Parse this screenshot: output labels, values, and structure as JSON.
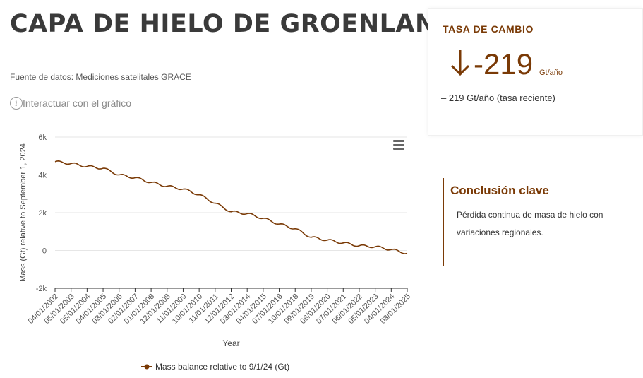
{
  "header": {
    "title": "CAPA DE HIELO DE GROENLANDIA",
    "source": "Fuente de datos: Mediciones satelitales GRACE",
    "interact_label": "Interactuar con el gráfico",
    "info_icon": "i"
  },
  "rate_card": {
    "label": "TASA DE CAMBIO",
    "arrow_icon": "arrow-down-icon",
    "value": "-219",
    "unit": "Gt/año",
    "note": "– 219 Gt/año (tasa reciente)"
  },
  "conclusion": {
    "title": "Conclusión clave",
    "text": "Pérdida continua de masa de hielo con variaciones regionales."
  },
  "colors": {
    "accent": "#7a3a06",
    "line": "#7a3a06",
    "grid": "#e6e6e6"
  },
  "chart_data": {
    "type": "line",
    "title": "",
    "xlabel": "Year",
    "ylabel": "Mass (Gt) relative to September 1, 2024",
    "ylim": [
      -2000,
      6000
    ],
    "yticks": [
      -2000,
      0,
      2000,
      4000,
      6000
    ],
    "ytick_labels": [
      "-2k",
      "0",
      "2k",
      "4k",
      "6k"
    ],
    "x_tick_labels": [
      "04/01/2002",
      "05/01/2003",
      "05/01/2004",
      "04/01/2005",
      "03/01/2006",
      "02/01/2007",
      "01/01/2008",
      "12/01/2008",
      "11/01/2009",
      "10/01/2010",
      "11/01/2011",
      "12/01/2012",
      "03/01/2014",
      "04/01/2015",
      "07/01/2016",
      "10/01/2018",
      "09/01/2019",
      "08/01/2020",
      "07/01/2021",
      "06/01/2022",
      "05/01/2023",
      "04/01/2024",
      "03/01/2025"
    ],
    "grid": true,
    "legend_position": "bottom",
    "series": [
      {
        "name": "Mass balance relative to 9/1/24 (Gt)",
        "x": [
          "04/01/2002",
          "05/01/2003",
          "05/01/2004",
          "04/01/2005",
          "03/01/2006",
          "02/01/2007",
          "01/01/2008",
          "12/01/2008",
          "11/01/2009",
          "10/01/2010",
          "11/01/2011",
          "12/01/2012",
          "03/01/2014",
          "04/01/2015",
          "07/01/2016",
          "10/01/2018",
          "09/01/2019",
          "08/01/2020",
          "07/01/2021",
          "06/01/2022",
          "05/01/2023",
          "04/01/2024",
          "03/01/2025"
        ],
        "values": [
          4700,
          4600,
          4450,
          4350,
          4000,
          3850,
          3600,
          3400,
          3250,
          2950,
          2500,
          2050,
          1950,
          1700,
          1400,
          1150,
          700,
          550,
          400,
          250,
          200,
          50,
          -150
        ]
      }
    ]
  }
}
